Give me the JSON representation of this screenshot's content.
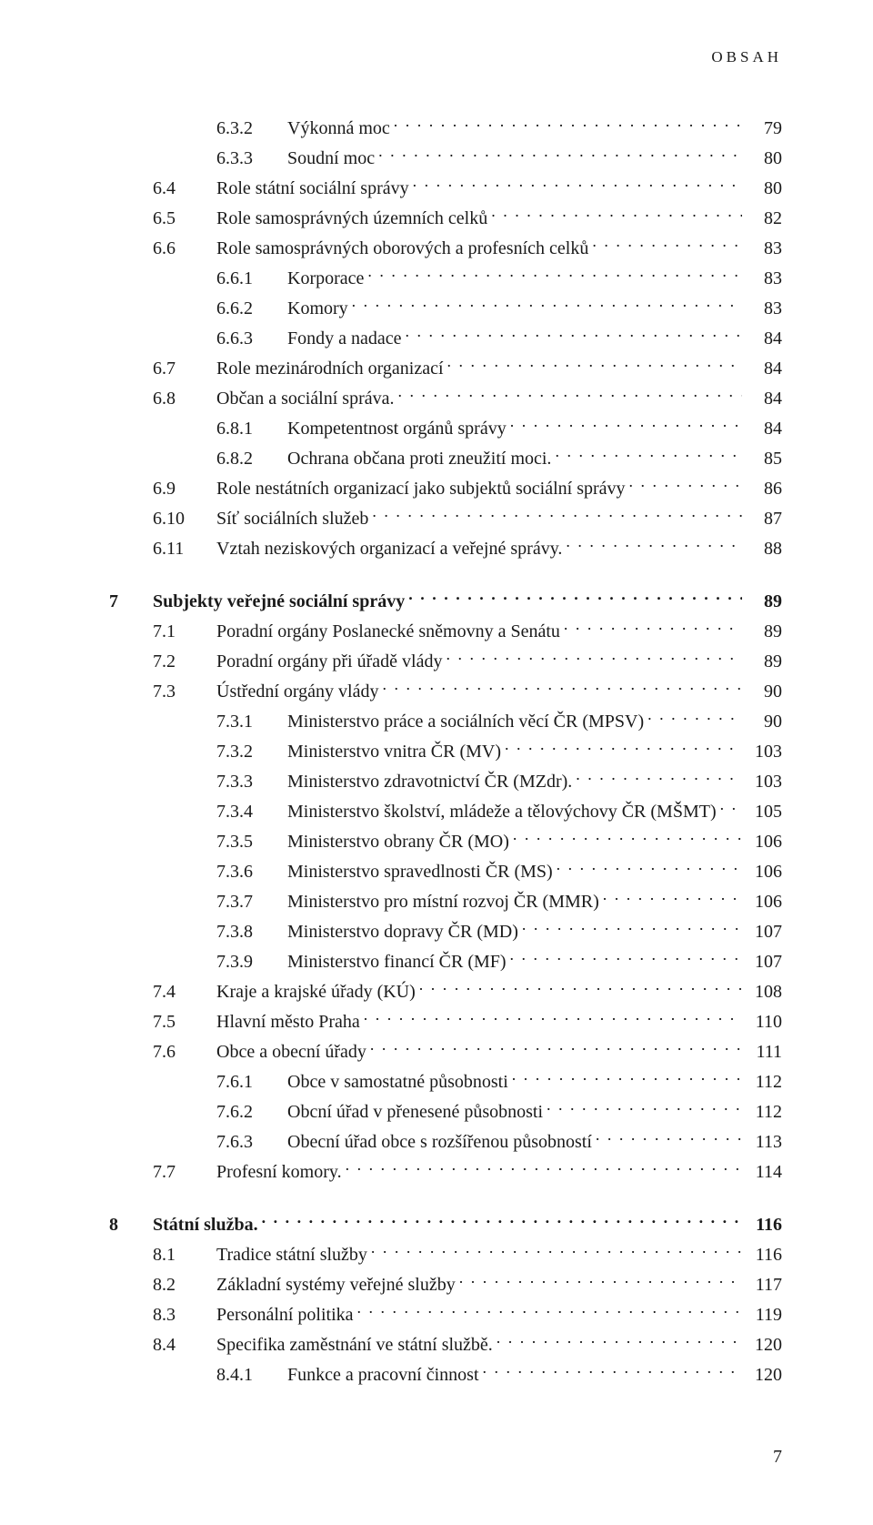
{
  "running_header": "OBSAH",
  "footer_page": "7",
  "entries": [
    {
      "level": 2,
      "num": "6.3.2",
      "title": "Výkonná moc",
      "page": "79"
    },
    {
      "level": 2,
      "num": "6.3.3",
      "title": "Soudní moc",
      "page": "80"
    },
    {
      "level": 1,
      "num": "6.4",
      "title": "Role státní sociální správy",
      "page": "80"
    },
    {
      "level": 1,
      "num": "6.5",
      "title": "Role samosprávných územních celků",
      "page": "82"
    },
    {
      "level": 1,
      "num": "6.6",
      "title": "Role samosprávných oborových a profesních celků",
      "page": "83"
    },
    {
      "level": 2,
      "num": "6.6.1",
      "title": "Korporace",
      "page": "83"
    },
    {
      "level": 2,
      "num": "6.6.2",
      "title": "Komory",
      "page": "83"
    },
    {
      "level": 2,
      "num": "6.6.3",
      "title": "Fondy a nadace",
      "page": "84"
    },
    {
      "level": 1,
      "num": "6.7",
      "title": "Role mezinárodních organizací",
      "page": "84"
    },
    {
      "level": 1,
      "num": "6.8",
      "title": "Občan a sociální správa.",
      "page": "84"
    },
    {
      "level": 2,
      "num": "6.8.1",
      "title": "Kompetentnost orgánů správy",
      "page": "84"
    },
    {
      "level": 2,
      "num": "6.8.2",
      "title": "Ochrana občana proti zneužití moci.",
      "page": "85"
    },
    {
      "level": 1,
      "num": "6.9",
      "title": "Role nestátních organizací jako subjektů sociální správy",
      "page": "86"
    },
    {
      "level": 1,
      "num": "6.10",
      "title": "Síť sociálních služeb",
      "page": "87"
    },
    {
      "level": 1,
      "num": "6.11",
      "title": "Vztah neziskových organizací a veřejné správy.",
      "page": "88"
    },
    {
      "level": 0,
      "num": "7",
      "title": "Subjekty veřejné sociální správy",
      "page": "89"
    },
    {
      "level": 1,
      "num": "7.1",
      "title": "Poradní orgány Poslanecké sněmovny a Senátu",
      "page": "89"
    },
    {
      "level": 1,
      "num": "7.2",
      "title": "Poradní orgány při úřadě vlády",
      "page": "89"
    },
    {
      "level": 1,
      "num": "7.3",
      "title": "Ústřední orgány vlády",
      "page": "90"
    },
    {
      "level": 2,
      "num": "7.3.1",
      "title": "Ministerstvo práce a sociálních věcí ČR (MPSV)",
      "page": "90"
    },
    {
      "level": 2,
      "num": "7.3.2",
      "title": "Ministerstvo vnitra ČR (MV)",
      "page": "103"
    },
    {
      "level": 2,
      "num": "7.3.3",
      "title": "Ministerstvo zdravotnictví ČR (MZdr).",
      "page": "103"
    },
    {
      "level": 2,
      "num": "7.3.4",
      "title": "Ministerstvo školství, mládeže a tělovýchovy ČR (MŠMT)",
      "page": "105"
    },
    {
      "level": 2,
      "num": "7.3.5",
      "title": "Ministerstvo obrany ČR (MO)",
      "page": "106"
    },
    {
      "level": 2,
      "num": "7.3.6",
      "title": "Ministerstvo spravedlnosti ČR (MS)",
      "page": "106"
    },
    {
      "level": 2,
      "num": "7.3.7",
      "title": "Ministerstvo pro místní rozvoj ČR (MMR)",
      "page": "106"
    },
    {
      "level": 2,
      "num": "7.3.8",
      "title": "Ministerstvo dopravy ČR (MD)",
      "page": "107"
    },
    {
      "level": 2,
      "num": "7.3.9",
      "title": "Ministerstvo financí ČR (MF)",
      "page": "107"
    },
    {
      "level": 1,
      "num": "7.4",
      "title": "Kraje a krajské úřady (KÚ)",
      "page": "108"
    },
    {
      "level": 1,
      "num": "7.5",
      "title": "Hlavní město Praha",
      "page": "110"
    },
    {
      "level": 1,
      "num": "7.6",
      "title": "Obce a obecní úřady",
      "page": "111"
    },
    {
      "level": 2,
      "num": "7.6.1",
      "title": "Obce v samostatné působnosti",
      "page": "112"
    },
    {
      "level": 2,
      "num": "7.6.2",
      "title": "Obcní úřad v přenesené působnosti",
      "page": "112"
    },
    {
      "level": 2,
      "num": "7.6.3",
      "title": "Obecní úřad obce s rozšířenou působností",
      "page": "113"
    },
    {
      "level": 1,
      "num": "7.7",
      "title": "Profesní komory.",
      "page": "114"
    },
    {
      "level": 0,
      "num": "8",
      "title": "Státní služba.",
      "page": "116"
    },
    {
      "level": 1,
      "num": "8.1",
      "title": "Tradice státní služby",
      "page": "116"
    },
    {
      "level": 1,
      "num": "8.2",
      "title": "Základní systémy veřejné služby",
      "page": "117"
    },
    {
      "level": 1,
      "num": "8.3",
      "title": "Personální politika",
      "page": "119"
    },
    {
      "level": 1,
      "num": "8.4",
      "title": "Specifika zaměstnání ve státní službě.",
      "page": "120"
    },
    {
      "level": 2,
      "num": "8.4.1",
      "title": "Funkce a pracovní činnost",
      "page": "120"
    }
  ]
}
